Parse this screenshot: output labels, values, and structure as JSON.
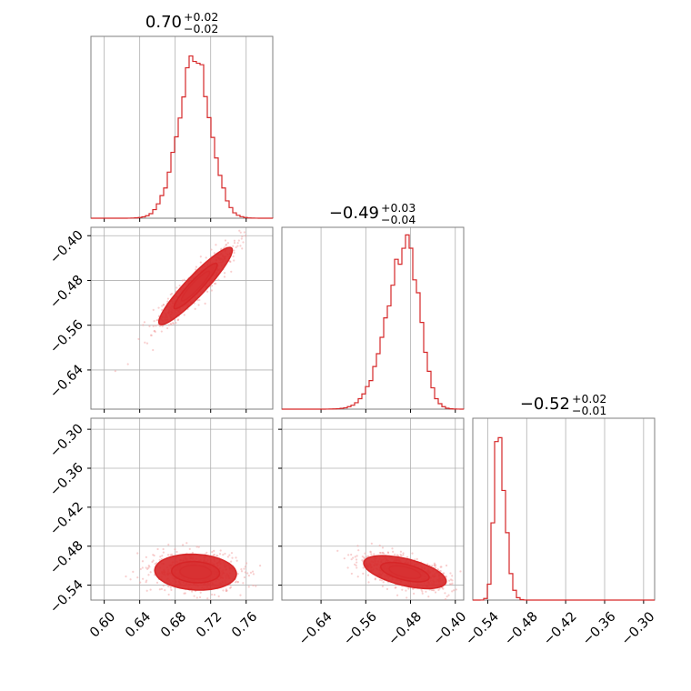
{
  "colors": {
    "accent": "#d62728",
    "fill_light": "#f4b0b2",
    "fill_dark": "#e57a7c",
    "scatter": "#f2a7a8",
    "grid": "#b0b0b0",
    "frame": "#7f7f7f"
  },
  "chart_data": {
    "type": "corner",
    "grid": true,
    "parameters": [
      {
        "title_value": "0.70",
        "title_plus": "+0.02",
        "title_minus": "−0.02",
        "range": [
          0.585,
          0.79
        ],
        "ticks": [
          0.6,
          0.64,
          0.68,
          0.72,
          0.76
        ],
        "tick_labels": [
          "0.60",
          "0.64",
          "0.68",
          "0.72",
          "0.76"
        ],
        "hist": {
          "mean": 0.703,
          "sd_left": 0.019,
          "sd_right": 0.017,
          "peak": 175
        }
      },
      {
        "title_value": "−0.49",
        "title_plus": "+0.03",
        "title_minus": "−0.04",
        "range": [
          -0.71,
          -0.385
        ],
        "ticks": [
          -0.64,
          -0.56,
          -0.48,
          -0.4
        ],
        "tick_labels": [
          "−0.64",
          "−0.56",
          "−0.48",
          "−0.40"
        ],
        "hist": {
          "mean": -0.485,
          "sd_left": 0.036,
          "sd_right": 0.022,
          "peak": 180
        }
      },
      {
        "title_value": "−0.52",
        "title_plus": "+0.02",
        "title_minus": "−0.01",
        "range": [
          -0.563,
          -0.283
        ],
        "ticks": [
          -0.54,
          -0.48,
          -0.42,
          -0.36,
          -0.3
        ],
        "tick_labels": [
          "−0.54",
          "−0.48",
          "−0.42",
          "−0.36",
          "−0.30"
        ],
        "hist": {
          "mean": -0.525,
          "sd_left": 0.006,
          "sd_right": 0.011,
          "peak": 182
        }
      }
    ],
    "pairs": [
      {
        "x_param": 0,
        "y_param": 1,
        "center": [
          0.703,
          -0.49
        ],
        "sd": [
          0.018,
          0.03
        ],
        "corr": 0.93,
        "contour_levels": [
          1.0,
          1.7,
          2.6
        ]
      },
      {
        "x_param": 0,
        "y_param": 2,
        "center": [
          0.703,
          -0.52
        ],
        "sd": [
          0.02,
          0.012
        ],
        "corr": -0.1,
        "contour_levels": [
          1.0,
          1.7,
          2.6
        ]
      },
      {
        "x_param": 1,
        "y_param": 2,
        "center": [
          -0.49,
          -0.52
        ],
        "sd": [
          0.032,
          0.011
        ],
        "corr": -0.55,
        "contour_levels": [
          1.0,
          1.7,
          2.6
        ]
      }
    ]
  }
}
